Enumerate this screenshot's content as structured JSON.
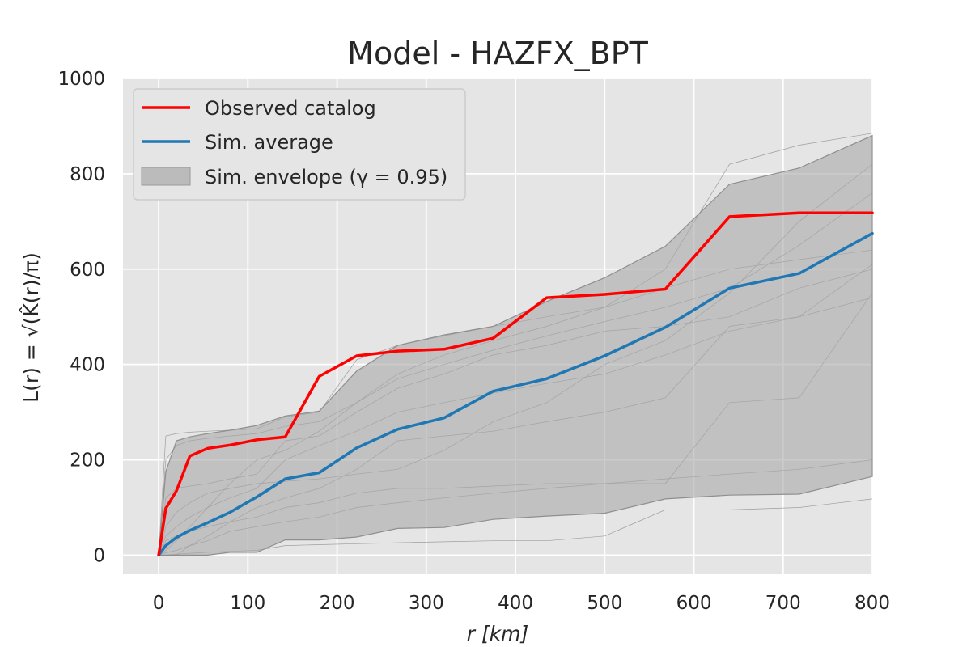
{
  "chart_data": {
    "type": "line",
    "title": "Model - HAZFX_BPT",
    "xlabel": "r  [km]",
    "ylabel": "L(r) = √(K̂(r)/π)",
    "xlim": [
      -40,
      800
    ],
    "ylim": [
      -40,
      1000
    ],
    "xticks": [
      0,
      100,
      200,
      300,
      400,
      500,
      600,
      700,
      800
    ],
    "yticks": [
      0,
      200,
      400,
      600,
      800,
      1000
    ],
    "grid": true,
    "legend_position": "top-left",
    "background": "#e5e5e5",
    "series": [
      {
        "name": "Observed catalog",
        "color": "#ff0000",
        "x": [
          0,
          8,
          20,
          35,
          55,
          80,
          110,
          142,
          180,
          222,
          268,
          320,
          375,
          435,
          500,
          568,
          640,
          718,
          800
        ],
        "y": [
          0,
          98,
          135,
          208,
          224,
          231,
          242,
          248,
          375,
          418,
          428,
          432,
          455,
          540,
          547,
          558,
          710,
          718,
          718
        ]
      },
      {
        "name": "Sim. average",
        "color": "#1f77b4",
        "x": [
          0,
          8,
          20,
          35,
          55,
          80,
          110,
          142,
          180,
          222,
          268,
          320,
          375,
          435,
          500,
          568,
          640,
          718,
          800
        ],
        "y": [
          0,
          20,
          37,
          52,
          68,
          90,
          122,
          160,
          173,
          225,
          264,
          288,
          344,
          370,
          418,
          478,
          560,
          591,
          675
        ]
      }
    ],
    "envelope": {
      "name": "Sim. envelope (γ = 0.95)",
      "color": "#a9a9a9",
      "x": [
        0,
        8,
        20,
        35,
        55,
        80,
        110,
        142,
        180,
        222,
        268,
        320,
        375,
        435,
        500,
        568,
        640,
        718,
        800
      ],
      "upper": [
        0,
        175,
        240,
        248,
        255,
        262,
        272,
        292,
        302,
        386,
        440,
        462,
        480,
        532,
        582,
        648,
        778,
        812,
        880
      ],
      "lower": [
        0,
        0,
        0,
        0,
        0,
        6,
        6,
        32,
        32,
        38,
        56,
        58,
        75,
        82,
        88,
        118,
        126,
        128,
        165
      ]
    },
    "sim_traces": [
      {
        "x": [
          0,
          8,
          20,
          35,
          55,
          80,
          110,
          142,
          180,
          222,
          268,
          320,
          375,
          435,
          500,
          568,
          640,
          718,
          800
        ],
        "y": [
          0,
          5,
          10,
          20,
          30,
          50,
          60,
          70,
          80,
          100,
          110,
          120,
          130,
          140,
          150,
          160,
          170,
          180,
          200
        ]
      },
      {
        "x": [
          0,
          8,
          20,
          35,
          55,
          80,
          110,
          142,
          180,
          222,
          268,
          320,
          375,
          435,
          500,
          568,
          640,
          718,
          800
        ],
        "y": [
          0,
          40,
          60,
          80,
          100,
          120,
          140,
          200,
          230,
          260,
          300,
          320,
          340,
          360,
          380,
          420,
          470,
          500,
          540
        ]
      },
      {
        "x": [
          0,
          8,
          20,
          35,
          55,
          80,
          110,
          142,
          180,
          222,
          268,
          320,
          375,
          435,
          500,
          568,
          640,
          718,
          800
        ],
        "y": [
          0,
          250,
          255,
          258,
          260,
          262,
          265,
          290,
          300,
          410,
          440,
          460,
          480,
          500,
          520,
          560,
          600,
          620,
          640
        ]
      },
      {
        "x": [
          0,
          8,
          20,
          35,
          55,
          80,
          110,
          142,
          180,
          222,
          268,
          320,
          375,
          435,
          500,
          568,
          640,
          718,
          800
        ],
        "y": [
          0,
          0,
          2,
          4,
          6,
          8,
          10,
          20,
          22,
          24,
          26,
          28,
          30,
          30,
          40,
          95,
          95,
          100,
          118
        ]
      },
      {
        "x": [
          0,
          8,
          20,
          35,
          55,
          80,
          110,
          142,
          180,
          222,
          268,
          320,
          375,
          435,
          500,
          568,
          640,
          718,
          800
        ],
        "y": [
          0,
          10,
          30,
          60,
          100,
          150,
          200,
          220,
          260,
          320,
          370,
          400,
          430,
          460,
          490,
          520,
          560,
          650,
          760
        ]
      },
      {
        "x": [
          0,
          8,
          20,
          35,
          55,
          80,
          110,
          142,
          180,
          222,
          268,
          320,
          375,
          435,
          500,
          568,
          640,
          718,
          800
        ],
        "y": [
          0,
          60,
          90,
          110,
          130,
          140,
          150,
          155,
          160,
          170,
          180,
          220,
          280,
          320,
          400,
          450,
          550,
          700,
          820
        ]
      },
      {
        "x": [
          0,
          8,
          20,
          35,
          55,
          80,
          110,
          142,
          180,
          222,
          268,
          320,
          375,
          435,
          500,
          568,
          640,
          718,
          800
        ],
        "y": [
          0,
          0,
          0,
          20,
          40,
          70,
          100,
          120,
          140,
          180,
          240,
          250,
          260,
          280,
          300,
          330,
          480,
          500,
          610
        ]
      },
      {
        "x": [
          0,
          8,
          20,
          35,
          55,
          80,
          110,
          142,
          180,
          222,
          268,
          320,
          375,
          435,
          500,
          568,
          640,
          718,
          800
        ],
        "y": [
          0,
          120,
          140,
          145,
          150,
          160,
          170,
          240,
          250,
          300,
          350,
          380,
          420,
          440,
          470,
          480,
          500,
          560,
          600
        ]
      },
      {
        "x": [
          0,
          8,
          20,
          35,
          55,
          80,
          110,
          142,
          180,
          222,
          268,
          320,
          375,
          435,
          500,
          568,
          640,
          718,
          800
        ],
        "y": [
          0,
          30,
          40,
          50,
          60,
          70,
          80,
          100,
          110,
          130,
          140,
          140,
          145,
          150,
          150,
          150,
          320,
          330,
          550
        ]
      },
      {
        "x": [
          0,
          8,
          20,
          35,
          55,
          80,
          110,
          142,
          180,
          222,
          268,
          320,
          375,
          435,
          500,
          568,
          640,
          718,
          800
        ],
        "y": [
          0,
          200,
          230,
          240,
          245,
          250,
          255,
          270,
          280,
          320,
          380,
          420,
          450,
          480,
          520,
          600,
          820,
          860,
          885
        ]
      }
    ]
  }
}
